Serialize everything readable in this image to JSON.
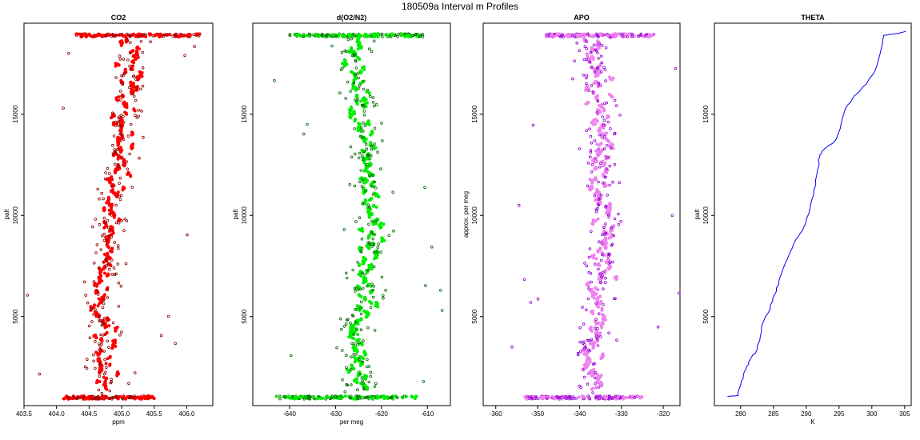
{
  "figure": {
    "title": "180509a   Interval m Profiles"
  },
  "chart_data": [
    {
      "type": "scatter",
      "title": "CO2",
      "xlabel": "ppm",
      "ylabel": "palt",
      "xlim": [
        403.5,
        406.4
      ],
      "ylim": [
        600,
        19500
      ],
      "xticks": [
        403.5,
        404.0,
        404.5,
        405.0,
        405.5,
        406.0
      ],
      "xtick_labels": [
        "403.5",
        "404.0",
        "404.5",
        "405.0",
        "405.5",
        "406.0"
      ],
      "yticks": [
        5000,
        10000,
        15000
      ],
      "ytick_labels": [
        "5000",
        "10000",
        "15000"
      ],
      "color": "#ff0000",
      "edge_color": "#8b0000",
      "profile": {
        "center": [
          [
            1000,
            404.85
          ],
          [
            3000,
            404.75
          ],
          [
            6000,
            404.72
          ],
          [
            9000,
            404.82
          ],
          [
            12000,
            404.95
          ],
          [
            15000,
            405.05
          ],
          [
            18000,
            405.15
          ],
          [
            19000,
            405.1
          ]
        ],
        "spread": 0.35,
        "clusters": 0.18
      },
      "band_low": {
        "y": 1000,
        "x_min": 404.1,
        "x_max": 405.5
      },
      "band_high": {
        "y": 18900,
        "x_min": 404.3,
        "x_max": 406.2
      }
    },
    {
      "type": "scatter",
      "title": "d(O2/N2)",
      "xlabel": "per meg",
      "ylabel": "palt",
      "xlim": [
        -648,
        -605
      ],
      "ylim": [
        600,
        19500
      ],
      "xticks": [
        -640,
        -630,
        -620,
        -610
      ],
      "xtick_labels": [
        "-640",
        "-630",
        "-620",
        "-610"
      ],
      "yticks": [
        5000,
        10000,
        15000
      ],
      "ytick_labels": [
        "5000",
        "10000",
        "15000"
      ],
      "color": "#00ee00",
      "edge_color": "#006400",
      "profile": {
        "center": [
          [
            1000,
            -625
          ],
          [
            3000,
            -626
          ],
          [
            6000,
            -624
          ],
          [
            9000,
            -622
          ],
          [
            12000,
            -623
          ],
          [
            15000,
            -624
          ],
          [
            18000,
            -626
          ],
          [
            19000,
            -625
          ]
        ],
        "spread": 5.5,
        "clusters": 3.0
      },
      "band_low": {
        "y": 1000,
        "x_min": -643,
        "x_max": -612
      },
      "band_high": {
        "y": 18900,
        "x_min": -640,
        "x_max": -611
      }
    },
    {
      "type": "scatter",
      "title": "APO",
      "xlabel": "",
      "ylabel": "approx. per meg",
      "xlim": [
        -363,
        -316
      ],
      "ylim": [
        600,
        19500
      ],
      "xticks": [
        -360,
        -350,
        -340,
        -330,
        -320
      ],
      "xtick_labels": [
        "-360",
        "-350",
        "-340",
        "-330",
        "-320"
      ],
      "yticks": [
        5000,
        10000,
        15000
      ],
      "ytick_labels": [
        "5000",
        "10000",
        "15000"
      ],
      "extra_ylabel": "",
      "color": "#ee82ee",
      "edge_color": "#9400d3",
      "profile": {
        "center": [
          [
            1000,
            -336
          ],
          [
            3000,
            -337
          ],
          [
            6000,
            -336
          ],
          [
            9000,
            -334
          ],
          [
            12000,
            -335
          ],
          [
            15000,
            -335
          ],
          [
            18000,
            -337
          ],
          [
            19000,
            -336
          ]
        ],
        "spread": 5.5,
        "clusters": 3.0
      },
      "band_low": {
        "y": 1000,
        "x_min": -353,
        "x_max": -325
      },
      "band_high": {
        "y": 18900,
        "x_min": -348,
        "x_max": -322
      }
    },
    {
      "type": "line",
      "title": "THETA",
      "xlabel": "K",
      "ylabel": "palt",
      "xlim": [
        276,
        306
      ],
      "ylim": [
        600,
        19500
      ],
      "xticks": [
        280,
        285,
        290,
        295,
        300,
        305
      ],
      "xtick_labels": [
        "280",
        "285",
        "290",
        "295",
        "300",
        "305"
      ],
      "yticks": [
        5000,
        10000,
        15000
      ],
      "ytick_labels": [
        "5000",
        "10000",
        "15000"
      ],
      "color": "#0000ff",
      "points": [
        [
          278.0,
          1050
        ],
        [
          279.6,
          1100
        ],
        [
          280.1,
          1800
        ],
        [
          280.8,
          2400
        ],
        [
          281.5,
          2900
        ],
        [
          282.4,
          3300
        ],
        [
          282.9,
          3800
        ],
        [
          283.2,
          4300
        ],
        [
          283.4,
          4700
        ],
        [
          284.4,
          5300
        ],
        [
          284.9,
          5900
        ],
        [
          285.8,
          6600
        ],
        [
          286.3,
          7200
        ],
        [
          287.3,
          8000
        ],
        [
          288.4,
          8800
        ],
        [
          289.6,
          9400
        ],
        [
          290.4,
          10100
        ],
        [
          291.1,
          11000
        ],
        [
          291.6,
          12000
        ],
        [
          292.1,
          13000
        ],
        [
          292.8,
          13300
        ],
        [
          294.2,
          13600
        ],
        [
          295.2,
          14300
        ],
        [
          296.0,
          15300
        ],
        [
          297.3,
          15900
        ],
        [
          299.2,
          16500
        ],
        [
          300.4,
          17100
        ],
        [
          301.4,
          18200
        ],
        [
          301.8,
          18900
        ],
        [
          304.1,
          19000
        ],
        [
          305.2,
          19100
        ]
      ]
    }
  ]
}
